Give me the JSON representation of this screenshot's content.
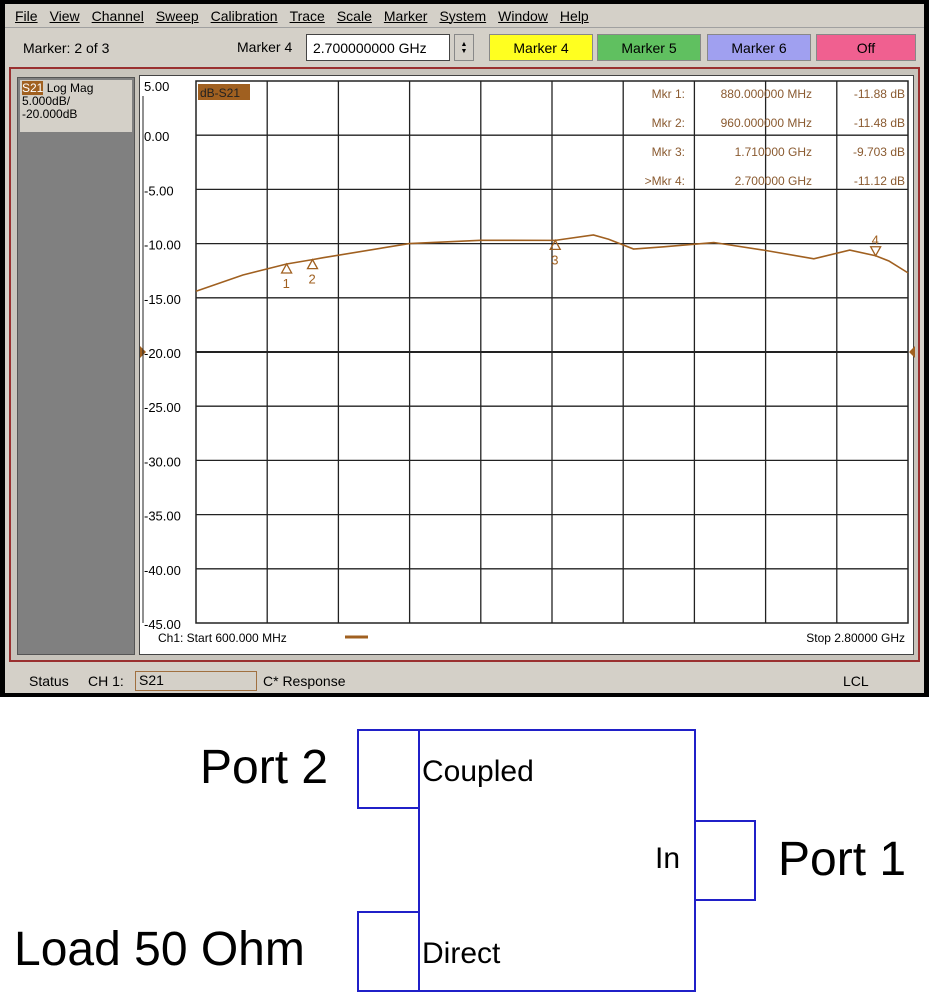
{
  "menu": [
    "File",
    "View",
    "Channel",
    "Sweep",
    "Calibration",
    "Trace",
    "Scale",
    "Marker",
    "System",
    "Window",
    "Help"
  ],
  "toolbar": {
    "marker_count": "Marker: 2 of 3",
    "field_label": "Marker 4",
    "field_value": "2.700000000 GHz",
    "buttons": [
      {
        "label": "Marker 4",
        "color": "#ffff20"
      },
      {
        "label": "Marker 5",
        "color": "#60c060"
      },
      {
        "label": "Marker 6",
        "color": "#a0a0f0"
      },
      {
        "label": "Off",
        "color": "#f06090"
      }
    ]
  },
  "channel": {
    "param": "S21",
    "format": "Log Mag",
    "scale": "5.000dB/",
    "ref": "-20.000dB"
  },
  "trace_label": "dB-S21",
  "markers_table": [
    {
      "name": "Mkr 1:",
      "stim": "880.000000 MHz",
      "resp": "-11.88 dB"
    },
    {
      "name": "Mkr 2:",
      "stim": "960.000000 MHz",
      "resp": "-11.48 dB"
    },
    {
      "name": "Mkr 3:",
      "stim": "1.710000 GHz",
      "resp": "-9.703 dB"
    },
    {
      "name": ">Mkr 4:",
      "stim": "2.700000 GHz",
      "resp": "-11.12 dB"
    }
  ],
  "footer": {
    "start": "Ch1: Start  600.000 MHz",
    "stop": "Stop  2.80000 GHz"
  },
  "status": {
    "label": "Status",
    "ch": "CH 1:",
    "param": "S21",
    "mode": "C* Response",
    "lcl": "LCL"
  },
  "chart_data": {
    "type": "line",
    "trace_color": "#a06020",
    "ylim": [
      -45,
      5
    ],
    "xlim_ghz": [
      0.6,
      2.8
    ],
    "yticks": [
      "5.00",
      "0.00",
      "-5.00",
      "-10.00",
      "-15.00",
      "-20.00",
      "-25.00",
      "-30.00",
      "-35.00",
      "-40.00",
      "-45.00"
    ],
    "reference_level": -20,
    "x_ghz": [
      0.6,
      0.745,
      0.88,
      0.96,
      0.993,
      1.259,
      1.479,
      1.71,
      1.828,
      1.875,
      1.952,
      2.045,
      2.2,
      2.354,
      2.509,
      2.62,
      2.7,
      2.741,
      2.8
    ],
    "y_db": [
      -14.4,
      -12.9,
      -11.88,
      -11.48,
      -11.3,
      -10.0,
      -9.7,
      -9.703,
      -9.2,
      -9.6,
      -10.5,
      -10.3,
      -9.9,
      -10.6,
      -11.4,
      -10.6,
      -11.12,
      -11.6,
      -12.7
    ],
    "markers": [
      {
        "id": "1",
        "x_ghz": 0.88,
        "y_db": -11.88
      },
      {
        "id": "2",
        "x_ghz": 0.96,
        "y_db": -11.48
      },
      {
        "id": "3",
        "x_ghz": 1.71,
        "y_db": -9.703
      },
      {
        "id": "4",
        "x_ghz": 2.7,
        "y_db": -11.12,
        "active": true
      }
    ]
  },
  "diagram": {
    "port2": "Port 2",
    "load": "Load 50 Ohm",
    "port1": "Port 1",
    "coupled": "Coupled",
    "direct": "Direct",
    "in": "In"
  }
}
